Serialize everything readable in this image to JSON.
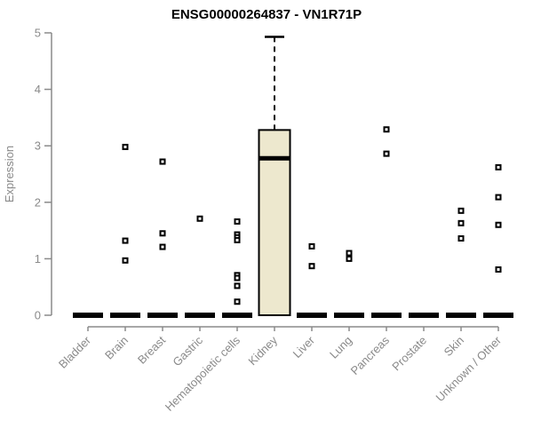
{
  "colors": {
    "axis": "#8a8a8a",
    "tick_label": "#8a8a8a",
    "title": "#000000",
    "box_fill": "#ede8ce",
    "box_border": "#000000",
    "zero_bar": "#000000",
    "outlier_stroke": "#000000",
    "outlier_fill": "#ffffff",
    "background": "#ffffff"
  },
  "chart_data": {
    "type": "boxplot",
    "title": "ENSG00000264837 - VN1R71P",
    "ylabel": "Expression",
    "xlabel": "",
    "ylim": [
      0,
      5
    ],
    "yticks": [
      0,
      1,
      2,
      3,
      4,
      5
    ],
    "grid": false,
    "legend": null,
    "categories": [
      "Bladder",
      "Brain",
      "Breast",
      "Gastric",
      "Hematopoietic cells",
      "Kidney",
      "Liver",
      "Lung",
      "Pancreas",
      "Prostate",
      "Skin",
      "Unknown / Other"
    ],
    "boxes": [
      {
        "category": "Bladder",
        "q1": 0,
        "median": 0,
        "q3": 0,
        "whisker_low": 0,
        "whisker_high": 0,
        "outliers": []
      },
      {
        "category": "Brain",
        "q1": 0,
        "median": 0,
        "q3": 0,
        "whisker_low": 0,
        "whisker_high": 0,
        "outliers": [
          2.98,
          1.32,
          0.97
        ]
      },
      {
        "category": "Breast",
        "q1": 0,
        "median": 0,
        "q3": 0,
        "whisker_low": 0,
        "whisker_high": 0,
        "outliers": [
          2.72,
          1.45,
          1.21
        ]
      },
      {
        "category": "Gastric",
        "q1": 0,
        "median": 0,
        "q3": 0,
        "whisker_low": 0,
        "whisker_high": 0,
        "outliers": [
          1.71
        ]
      },
      {
        "category": "Hematopoietic cells",
        "q1": 0,
        "median": 0,
        "q3": 0,
        "whisker_low": 0,
        "whisker_high": 0,
        "outliers": [
          1.66,
          1.43,
          1.38,
          1.33,
          0.71,
          0.66,
          0.52,
          0.24
        ]
      },
      {
        "category": "Kidney",
        "q1": 0,
        "median": 2.78,
        "q3": 3.28,
        "whisker_low": 0,
        "whisker_high": 4.93,
        "outliers": []
      },
      {
        "category": "Liver",
        "q1": 0,
        "median": 0,
        "q3": 0,
        "whisker_low": 0,
        "whisker_high": 0,
        "outliers": [
          1.22,
          0.87
        ]
      },
      {
        "category": "Lung",
        "q1": 0,
        "median": 0,
        "q3": 0,
        "whisker_low": 0,
        "whisker_high": 0,
        "outliers": [
          1.1,
          1.0
        ]
      },
      {
        "category": "Pancreas",
        "q1": 0,
        "median": 0,
        "q3": 0,
        "whisker_low": 0,
        "whisker_high": 0,
        "outliers": [
          3.29,
          2.86
        ]
      },
      {
        "category": "Prostate",
        "q1": 0,
        "median": 0,
        "q3": 0,
        "whisker_low": 0,
        "whisker_high": 0,
        "outliers": []
      },
      {
        "category": "Skin",
        "q1": 0,
        "median": 0,
        "q3": 0,
        "whisker_low": 0,
        "whisker_high": 0,
        "outliers": [
          1.85,
          1.63,
          1.36
        ]
      },
      {
        "category": "Unknown / Other",
        "q1": 0,
        "median": 0,
        "q3": 0,
        "whisker_low": 0,
        "whisker_high": 0,
        "outliers": [
          2.62,
          2.09,
          1.6,
          0.81
        ]
      }
    ]
  }
}
